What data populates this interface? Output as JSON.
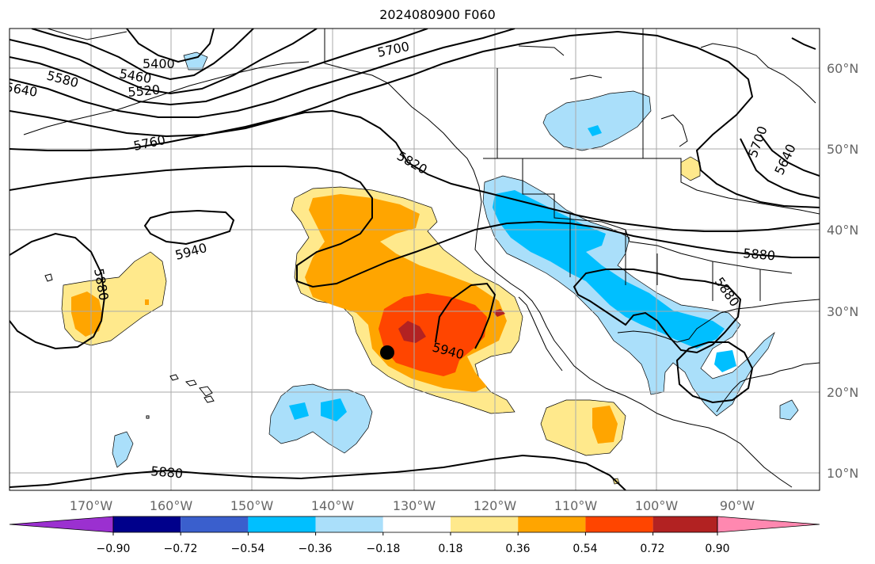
{
  "title": "2024080900 F060",
  "lon_ticks": [
    "170°W",
    "160°W",
    "150°W",
    "140°W",
    "130°W",
    "120°W",
    "110°W",
    "100°W",
    "90°W"
  ],
  "lat_ticks": [
    "60°N",
    "50°N",
    "40°N",
    "30°N",
    "20°N",
    "10°N"
  ],
  "contour_labels": [
    "5400",
    "5460",
    "5520",
    "5580",
    "5640",
    "5700",
    "5760",
    "5820",
    "5880",
    "5940",
    "5880",
    "5940",
    "5880",
    "5640",
    "5700",
    "5880"
  ],
  "colorbar": {
    "labels": [
      "−0.90",
      "−0.72",
      "−0.54",
      "−0.36",
      "−0.18",
      "0.18",
      "0.36",
      "0.54",
      "0.72",
      "0.90"
    ],
    "colors": [
      "#9b30d0",
      "#00008b",
      "#3a5fcd",
      "#00bfff",
      "#aadffa",
      "#ffffff",
      "#ffe98c",
      "#ffa500",
      "#ff4500",
      "#b22222",
      "#ff88b0"
    ]
  },
  "storm_marker": {
    "lon": "133.5°W",
    "lat": "25°N"
  }
}
